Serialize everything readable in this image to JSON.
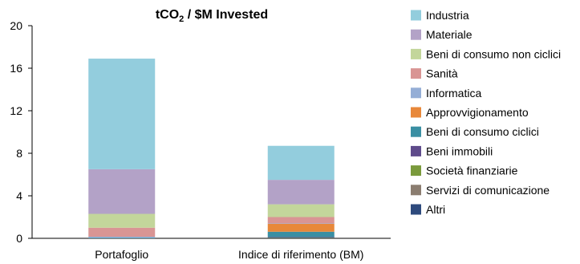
{
  "chart_data": {
    "type": "bar",
    "stacked": true,
    "title": {
      "main": "tCO",
      "subscript": "2",
      "rest": " / $M Invested"
    },
    "categories": [
      "Portafoglio",
      "Indice di riferimento (BM)"
    ],
    "ylim": [
      0,
      20
    ],
    "yticks": [
      0,
      4,
      8,
      12,
      16,
      20
    ],
    "grid": false,
    "legend_position": "right",
    "series": [
      {
        "name": "Altri",
        "color": "#2e4a7d",
        "values": [
          0.0,
          0.05
        ]
      },
      {
        "name": "Servizi di comunicazione",
        "color": "#8b7d70",
        "values": [
          0.0,
          0.0
        ]
      },
      {
        "name": "Società finanziarie",
        "color": "#7a9a3c",
        "values": [
          0.0,
          0.02
        ]
      },
      {
        "name": "Beni immobili",
        "color": "#5f4b8b",
        "values": [
          0.0,
          0.05
        ]
      },
      {
        "name": "Beni di consumo ciclici",
        "color": "#3a8fa3",
        "values": [
          0.05,
          0.5
        ]
      },
      {
        "name": "Approvvigionamento",
        "color": "#e8883a",
        "values": [
          0.0,
          0.75
        ]
      },
      {
        "name": "Informatica",
        "color": "#95aed6",
        "values": [
          0.1,
          0.03
        ]
      },
      {
        "name": "Sanità",
        "color": "#d99594",
        "values": [
          0.85,
          0.6
        ]
      },
      {
        "name": "Beni di consumo non ciclici",
        "color": "#c3d69b",
        "values": [
          1.3,
          1.2
        ]
      },
      {
        "name": "Materiale",
        "color": "#b3a2c7",
        "values": [
          4.2,
          2.3
        ]
      },
      {
        "name": "Industria",
        "color": "#93cddd",
        "values": [
          10.4,
          3.2
        ]
      }
    ],
    "legend_order": [
      "Industria",
      "Materiale",
      "Beni di consumo non ciclici",
      "Sanità",
      "Informatica",
      "Approvvigionamento",
      "Beni di consumo ciclici",
      "Beni immobili",
      "Società finanziarie",
      "Servizi di comunicazione",
      "Altri"
    ]
  }
}
